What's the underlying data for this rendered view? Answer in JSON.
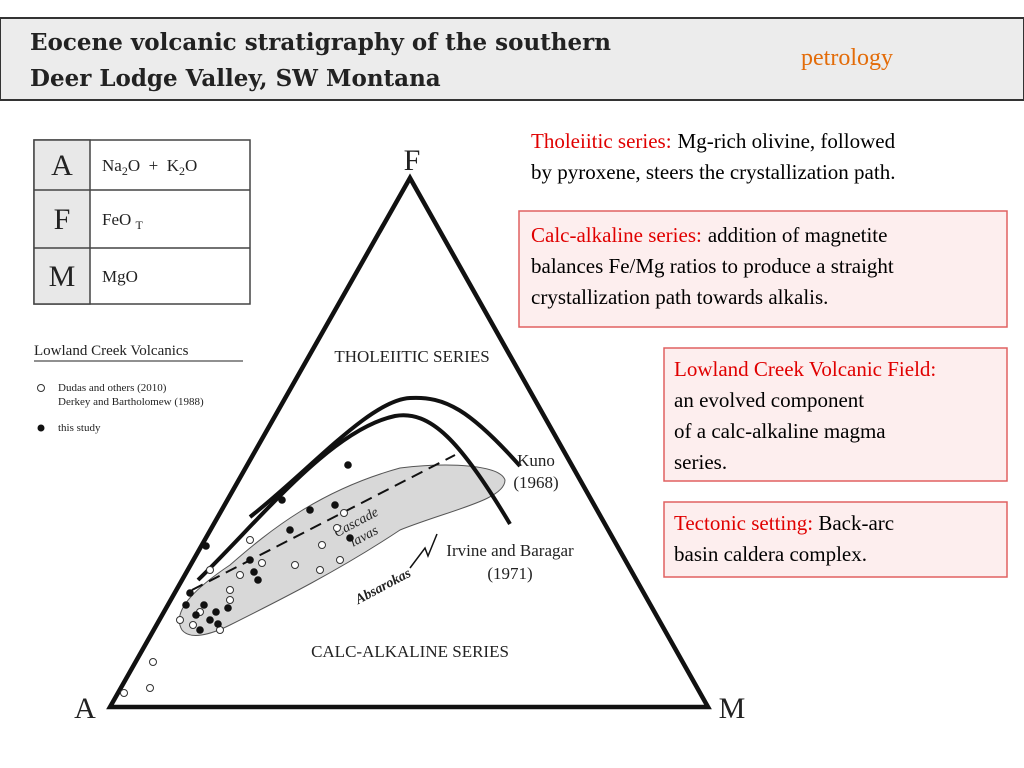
{
  "header": {
    "title": [
      "Eocene volcanic stratigraphy of the southern",
      "Deer Lodge Valley, SW Montana"
    ],
    "tag": "petrology"
  },
  "key_table": {
    "rows": [
      {
        "letter": "A",
        "formula": [
          "Na",
          "2",
          "O  +  K",
          "2",
          "O"
        ]
      },
      {
        "letter": "F",
        "formula": [
          "FeO ",
          "T"
        ]
      },
      {
        "letter": "M",
        "formula": [
          "MgO"
        ]
      }
    ]
  },
  "legend": {
    "title": "Lowland Creek Volcanics",
    "entries": [
      "Dudas and others (2010)",
      "Derkey and Bartholomew (1988)",
      "this study"
    ]
  },
  "diagram": {
    "vertices": [
      "F",
      "A",
      "M"
    ],
    "fields": [
      "THOLEIITIC SERIES",
      "CALC-ALKALINE SERIES"
    ],
    "labels": [
      "Kuno",
      "(1968)",
      "Irvine and Baragar",
      "(1971)",
      "Cascade",
      "lavas",
      "Absarokas"
    ]
  },
  "notes": [
    {
      "head": "Tholeiitic series:",
      "body": [
        "Mg-rich olivine, followed",
        "by pyroxene, steers the crystallization path."
      ]
    },
    {
      "head": "Calc-alkaline series:",
      "body": [
        "addition of magnetite",
        "balances Fe/Mg ratios to produce a straight",
        "crystallization path towards alkalis."
      ]
    },
    {
      "head": "Lowland Creek Volcanic Field:",
      "body": [
        "an evolved component",
        "of a calc-alkaline magma",
        "series."
      ]
    },
    {
      "head": "Tectonic setting:",
      "body": [
        " Back-arc",
        "basin caldera complex."
      ]
    }
  ]
}
